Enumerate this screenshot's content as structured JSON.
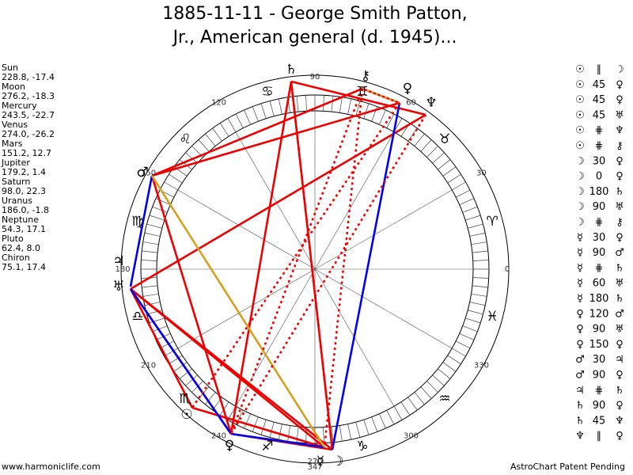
{
  "title": [
    "1885-11-11 - George Smith Patton,",
    "Jr., American general (d. 1945)..."
  ],
  "planets": [
    {
      "name": "Sun",
      "position": "228.8, -17.4"
    },
    {
      "name": "Moon",
      "position": "276.2, -18.3"
    },
    {
      "name": "Mercury",
      "position": "243.5, -22.7"
    },
    {
      "name": "Venus",
      "position": "274.0, -26.2"
    },
    {
      "name": "Mars",
      "position": "151.2, 12.7"
    },
    {
      "name": "Jupiter",
      "position": "179.2, 1.4"
    },
    {
      "name": "Saturn",
      "position": "98.0, 22.3"
    },
    {
      "name": "Uranus",
      "position": "186.0, -1.8"
    },
    {
      "name": "Neptune",
      "position": "54.3, 17.1"
    },
    {
      "name": "Pluto",
      "position": "62.4, 8.0"
    },
    {
      "name": "Chiron",
      "position": "75.1, 17.4"
    }
  ],
  "wheel": {
    "degrees": [
      "0",
      "30",
      "60",
      "90",
      "120",
      "150",
      "180",
      "210",
      "240",
      "270",
      "300",
      "330"
    ],
    "signs": [
      "♈",
      "♉",
      "♊",
      "♋",
      "♌",
      "♍",
      "♎",
      "♏",
      "♐",
      "♑",
      "♒",
      "♓"
    ],
    "glyphs": [
      "♄",
      "⚷",
      "♀",
      "♆",
      "♂",
      "♃",
      "♅",
      "☉",
      "♀",
      "☿",
      "☽"
    ],
    "marker": "347"
  },
  "aspects": [
    [
      "☉",
      "∥",
      "☽"
    ],
    [
      "☉",
      "45",
      "♀"
    ],
    [
      "☉",
      "45",
      "♀"
    ],
    [
      "☉",
      "45",
      "♅"
    ],
    [
      "☉",
      "⋕",
      "♆"
    ],
    [
      "☉",
      "⋕",
      "⚷"
    ],
    [
      "☽",
      "30",
      "♀"
    ],
    [
      "☽",
      "0",
      "♀"
    ],
    [
      "☽",
      "180",
      "♄"
    ],
    [
      "☽",
      "90",
      "♅"
    ],
    [
      "☽",
      "⋕",
      "⚷"
    ],
    [
      "☿",
      "30",
      "♀"
    ],
    [
      "☿",
      "90",
      "♂"
    ],
    [
      "☿",
      "⋕",
      "♄"
    ],
    [
      "☿",
      "60",
      "♅"
    ],
    [
      "☿",
      "180",
      "♄"
    ],
    [
      "♀",
      "120",
      "♂"
    ],
    [
      "♀",
      "90",
      "♅"
    ],
    [
      "♀",
      "150",
      "♀"
    ],
    [
      "♂",
      "30",
      "♃"
    ],
    [
      "♂",
      "90",
      "♀"
    ],
    [
      "♃",
      "⋕",
      "♄"
    ],
    [
      "♄",
      "90",
      "♀"
    ],
    [
      "♄",
      "45",
      "♆"
    ],
    [
      "♆",
      "∥",
      "♀"
    ]
  ],
  "footer": {
    "left": "www.harmoniclife.com",
    "right": "AstroChart Patent Pending"
  }
}
